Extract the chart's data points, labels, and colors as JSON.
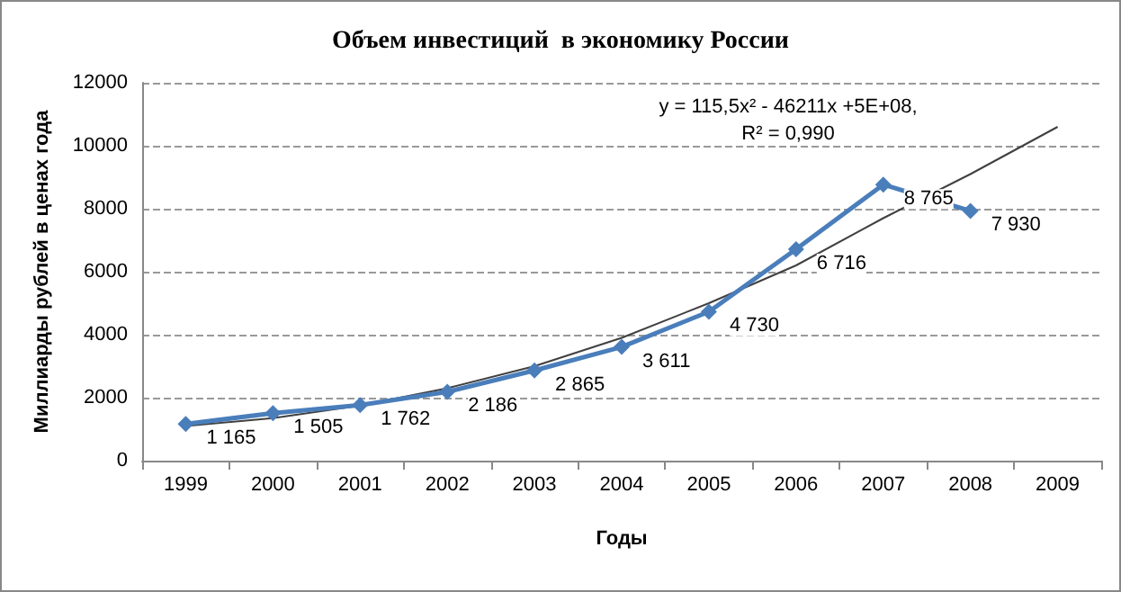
{
  "chart_data": {
    "type": "line",
    "title": "Объем инвестиций  в экономику России",
    "xlabel": "Годы",
    "ylabel": "Миллиарды рублей в ценах года",
    "categories": [
      "1999",
      "2000",
      "2001",
      "2002",
      "2003",
      "2004",
      "2005",
      "2006",
      "2007",
      "2008",
      "2009"
    ],
    "series": [
      {
        "color": "#4a7ebb",
        "marker": "diamond",
        "values": [
          1165,
          1505,
          1762,
          2186,
          2865,
          3611,
          4730,
          6716,
          8765,
          7930,
          null
        ],
        "value_labels": [
          "1 165",
          "1 505",
          "1 762",
          "2 186",
          "2 865",
          "3 611",
          "4 730",
          "6 716",
          "8 765",
          "7 930",
          null
        ]
      },
      {
        "type": "line",
        "color": "#404040",
        "marker": "none",
        "values": [
          1100,
          1350,
          1750,
          2300,
          3000,
          3900,
          5000,
          6200,
          7700,
          9100,
          10600
        ]
      }
    ],
    "annotations": [
      "y = 115,5x² - 46211x +5E+08,",
      "R² = 0,990"
    ],
    "ylim": [
      0,
      12000
    ],
    "yticks": [
      0,
      2000,
      4000,
      6000,
      8000,
      10000,
      12000
    ],
    "grid": "y"
  }
}
